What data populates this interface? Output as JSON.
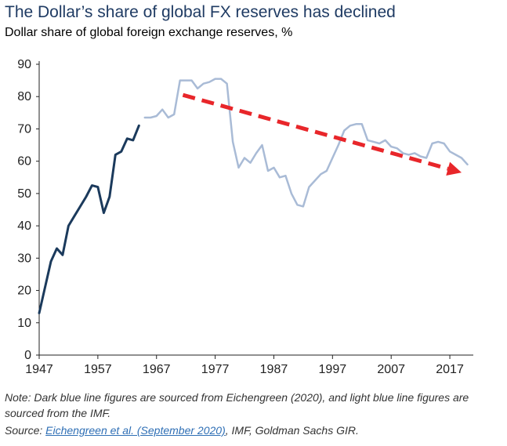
{
  "header": {
    "title": "The Dollar’s share of global FX reserves has declined",
    "subtitle": "Dollar share of global foreign exchange reserves, %"
  },
  "footer": {
    "note": "Note: Dark blue line figures are sourced from Eichengreen (2020), and light blue line figures are sourced from the IMF.",
    "source_prefix": "Source: ",
    "source_link": "Eichengreen et al. (September 2020)",
    "source_suffix": ", IMF, Goldman Sachs GIR."
  },
  "chart_data": {
    "type": "line",
    "title": "The Dollar’s share of global FX reserves has declined",
    "subtitle": "Dollar share of global foreign exchange reserves, %",
    "xlim": [
      1947,
      2021
    ],
    "ylim": [
      0,
      90
    ],
    "x_ticks": [
      1947,
      1957,
      1967,
      1977,
      1987,
      1997,
      2007,
      2017
    ],
    "y_ticks": [
      0,
      10,
      20,
      30,
      40,
      50,
      60,
      70,
      80,
      90
    ],
    "grid": false,
    "colors": {
      "dark": "#1b3a5c",
      "light": "#a9bbd6",
      "arrow": "#e8262a"
    },
    "series": [
      {
        "source": "Eichengreen (2020)",
        "color": "#1b3a5c",
        "x": [
          1947,
          1948,
          1949,
          1950,
          1951,
          1952,
          1953,
          1954,
          1955,
          1956,
          1957,
          1958,
          1959,
          1960,
          1961,
          1962,
          1963,
          1964
        ],
        "y": [
          13,
          21,
          29,
          33,
          31,
          40,
          43,
          46,
          49,
          52.5,
          52,
          44,
          49,
          62,
          63,
          67,
          66.5,
          71
        ]
      },
      {
        "source": "IMF",
        "color": "#a9bbd6",
        "x": [
          1965,
          1966,
          1967,
          1968,
          1969,
          1970,
          1971,
          1972,
          1973,
          1974,
          1975,
          1976,
          1977,
          1978,
          1979,
          1980,
          1981,
          1982,
          1983,
          1984,
          1985,
          1986,
          1987,
          1988,
          1989,
          1990,
          1991,
          1992,
          1993,
          1994,
          1995,
          1996,
          1997,
          1998,
          1999,
          2000,
          2001,
          2002,
          2003,
          2004,
          2005,
          2006,
          2007,
          2008,
          2009,
          2010,
          2011,
          2012,
          2013,
          2014,
          2015,
          2016,
          2017,
          2018,
          2019,
          2020
        ],
        "y": [
          73.5,
          73.5,
          74,
          76,
          73.5,
          74.5,
          85,
          85,
          85,
          82.5,
          84,
          84.5,
          85.5,
          85.5,
          84,
          66,
          58,
          61,
          59.5,
          62.5,
          65,
          57,
          58,
          55,
          55.5,
          50,
          46.5,
          46,
          52,
          54,
          56,
          57,
          61,
          65,
          69.5,
          71,
          71.5,
          71.5,
          66.5,
          66,
          65.5,
          66.5,
          64.5,
          64,
          62.5,
          62,
          62.5,
          61.5,
          61,
          65.5,
          66,
          65.5,
          63,
          62,
          61,
          59
        ]
      }
    ],
    "annotation": {
      "type": "arrow",
      "from": [
        1971.5,
        80.5
      ],
      "to": [
        2019,
        56.5
      ]
    }
  }
}
